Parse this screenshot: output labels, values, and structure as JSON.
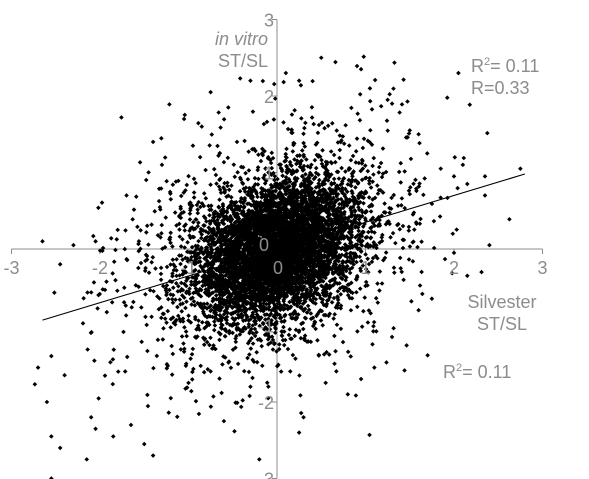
{
  "chart_data": {
    "type": "scatter",
    "title": "",
    "ylabel_line1": "in vitro",
    "ylabel_line2": "ST/SL",
    "xlabel_line1": "Silvester",
    "xlabel_line2": "ST/SL",
    "xlim": [
      -3,
      3
    ],
    "ylim": [
      -3,
      3
    ],
    "x_ticks": [
      "-3",
      "-2",
      "-1",
      "0",
      "1",
      "2",
      "3"
    ],
    "y_ticks": [
      "-3",
      "-2",
      "-1",
      "0",
      "1",
      "2",
      "3"
    ],
    "origin_label": "0",
    "grid": false,
    "legend": "none",
    "marker_color": "#000000",
    "axis_color": "#8c8c8c",
    "label_color": "#8c8c8c",
    "annotations": {
      "top_r2_prefix": "R",
      "top_r2_sup": "2",
      "top_r2_value": "= 0.11",
      "top_r": "R=0.33",
      "bottom_r2_prefix": "R",
      "bottom_r2_sup": "2",
      "bottom_r2_value": "= 0.11"
    },
    "trendline": {
      "x": [
        -2.65,
        2.8
      ],
      "y": [
        -0.93,
        0.98
      ]
    },
    "scatter_spec": {
      "n_core": 5200,
      "core_sd_x": 0.45,
      "core_sd_y": 0.45,
      "correlation": 0.33,
      "n_tail": 1500,
      "tail_sd_x": 0.85,
      "tail_sd_y": 0.85,
      "seed": 20240517
    },
    "points": [
      {
        "x": -2.65,
        "y": 0.1
      },
      {
        "x": -2.45,
        "y": -0.2
      },
      {
        "x": -2.3,
        "y": 0.05
      },
      {
        "x": -2.7,
        "y": -1.55
      },
      {
        "x": -2.55,
        "y": -1.4
      },
      {
        "x": -2.4,
        "y": -1.65
      },
      {
        "x": -2.6,
        "y": -2.0
      },
      {
        "x": -2.55,
        "y": -2.45
      },
      {
        "x": -2.45,
        "y": -2.6
      },
      {
        "x": -2.1,
        "y": -2.2
      },
      {
        "x": -2.05,
        "y": -2.35
      },
      {
        "x": -2.15,
        "y": -2.75
      },
      {
        "x": -1.85,
        "y": -2.45
      },
      {
        "x": -1.65,
        "y": -2.3
      },
      {
        "x": -1.5,
        "y": -2.55
      },
      {
        "x": -2.55,
        "y": -3.0
      },
      {
        "x": -1.4,
        "y": -2.7
      },
      {
        "x": -1.4,
        "y": 1.4
      },
      {
        "x": -1.7,
        "y": 0.7
      },
      {
        "x": -1.05,
        "y": 1.7
      },
      {
        "x": -1.3,
        "y": 1.1
      },
      {
        "x": -0.95,
        "y": 1.35
      },
      {
        "x": -2.05,
        "y": 0.1
      },
      {
        "x": -1.8,
        "y": 0.25
      },
      {
        "x": -1.2,
        "y": 0.65
      },
      {
        "x": -0.85,
        "y": 1.6
      },
      {
        "x": -0.55,
        "y": 1.85
      },
      {
        "x": -0.75,
        "y": 2.05
      },
      {
        "x": -0.3,
        "y": 2.2
      },
      {
        "x": 0.1,
        "y": 2.3
      },
      {
        "x": 0.25,
        "y": 2.2
      },
      {
        "x": 0.5,
        "y": 2.5
      },
      {
        "x": 0.95,
        "y": 2.35
      },
      {
        "x": 1.25,
        "y": 1.95
      },
      {
        "x": 1.3,
        "y": 1.9
      },
      {
        "x": 1.05,
        "y": 2.1
      },
      {
        "x": 1.5,
        "y": 1.55
      },
      {
        "x": 1.6,
        "y": 1.5
      },
      {
        "x": 2.05,
        "y": 2.3
      },
      {
        "x": 1.85,
        "y": 1.05
      },
      {
        "x": 2.0,
        "y": 0.95
      },
      {
        "x": 2.15,
        "y": 0.85
      },
      {
        "x": 2.35,
        "y": 0.7
      },
      {
        "x": 2.1,
        "y": 1.1
      },
      {
        "x": 2.4,
        "y": 0.05
      },
      {
        "x": 2.0,
        "y": -0.05
      },
      {
        "x": 2.15,
        "y": -0.35
      },
      {
        "x": 1.75,
        "y": -0.65
      },
      {
        "x": 2.75,
        "y": 1.05
      },
      {
        "x": 2.35,
        "y": 0.95
      },
      {
        "x": 1.1,
        "y": -1.55
      },
      {
        "x": 0.95,
        "y": -1.7
      },
      {
        "x": 0.8,
        "y": -1.9
      },
      {
        "x": 0.55,
        "y": -1.75
      },
      {
        "x": 0.65,
        "y": -1.5
      },
      {
        "x": 0.3,
        "y": -2.2
      },
      {
        "x": 0.15,
        "y": -1.6
      },
      {
        "x": -0.1,
        "y": -1.95
      },
      {
        "x": -0.3,
        "y": -1.8
      },
      {
        "x": -0.6,
        "y": -2.25
      },
      {
        "x": -1.0,
        "y": -1.75
      },
      {
        "x": -1.2,
        "y": -1.95
      },
      {
        "x": -0.75,
        "y": -1.6
      },
      {
        "x": 1.6,
        "y": -0.8
      },
      {
        "x": 1.3,
        "y": -1.15
      },
      {
        "x": -0.2,
        "y": -2.75
      },
      {
        "x": 0.25,
        "y": -2.4
      }
    ]
  }
}
